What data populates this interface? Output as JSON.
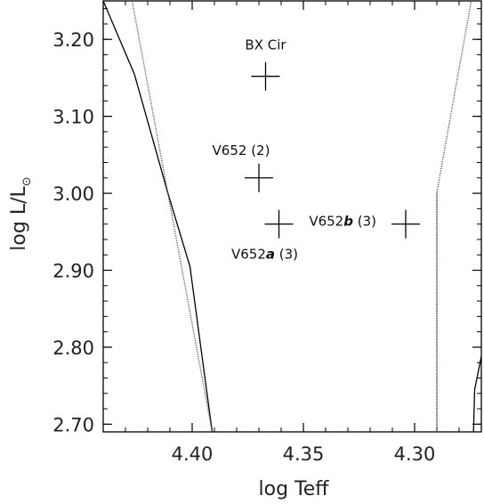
{
  "chart_data": {
    "type": "scatter",
    "xlabel": "log Teff",
    "ylabel": {
      "main": "log L/L",
      "sub": "⊙"
    },
    "xlim": [
      4.44,
      4.27
    ],
    "ylim": [
      2.69,
      3.25
    ],
    "x_reversed": true,
    "xticks": [
      {
        "value": 4.4,
        "label": "4.40"
      },
      {
        "value": 4.35,
        "label": "4.35"
      },
      {
        "value": 4.3,
        "label": "4.30"
      }
    ],
    "yticks": [
      {
        "value": 2.7,
        "label": "2.70"
      },
      {
        "value": 2.8,
        "label": "2.80"
      },
      {
        "value": 2.9,
        "label": "2.90"
      },
      {
        "value": 3.0,
        "label": "3.00"
      },
      {
        "value": 3.1,
        "label": "3.10"
      },
      {
        "value": 3.2,
        "label": "3.20"
      }
    ],
    "points": [
      {
        "x": 4.367,
        "y": 3.152,
        "label": "BX Cir"
      },
      {
        "x": 4.37,
        "y": 3.02,
        "label": "V652 (2)"
      },
      {
        "x": 4.361,
        "y": 2.96,
        "label_parts": [
          "V652",
          "a",
          " (3)"
        ]
      },
      {
        "x": 4.304,
        "y": 2.96,
        "label_parts": [
          "V652",
          "b",
          " (3)"
        ]
      }
    ],
    "tracks": [
      {
        "style": "solid",
        "points": [
          [
            4.44,
            3.25
          ],
          [
            4.426,
            3.155
          ],
          [
            4.411,
            3.001
          ],
          [
            4.401,
            2.905
          ],
          [
            4.391,
            2.69
          ]
        ]
      },
      {
        "style": "dotted",
        "points": [
          [
            4.427,
            3.25
          ],
          [
            4.391,
            2.69
          ]
        ]
      },
      {
        "style": "dotted",
        "points": [
          [
            4.29,
            3.001
          ],
          [
            4.29,
            2.69
          ],
          [
            4.29,
            3.001
          ],
          [
            4.2745,
            3.25
          ]
        ]
      },
      {
        "style": "solid",
        "points": [
          [
            4.2735,
            2.69
          ],
          [
            4.273,
            2.745
          ],
          [
            4.27,
            2.788
          ]
        ]
      }
    ]
  }
}
